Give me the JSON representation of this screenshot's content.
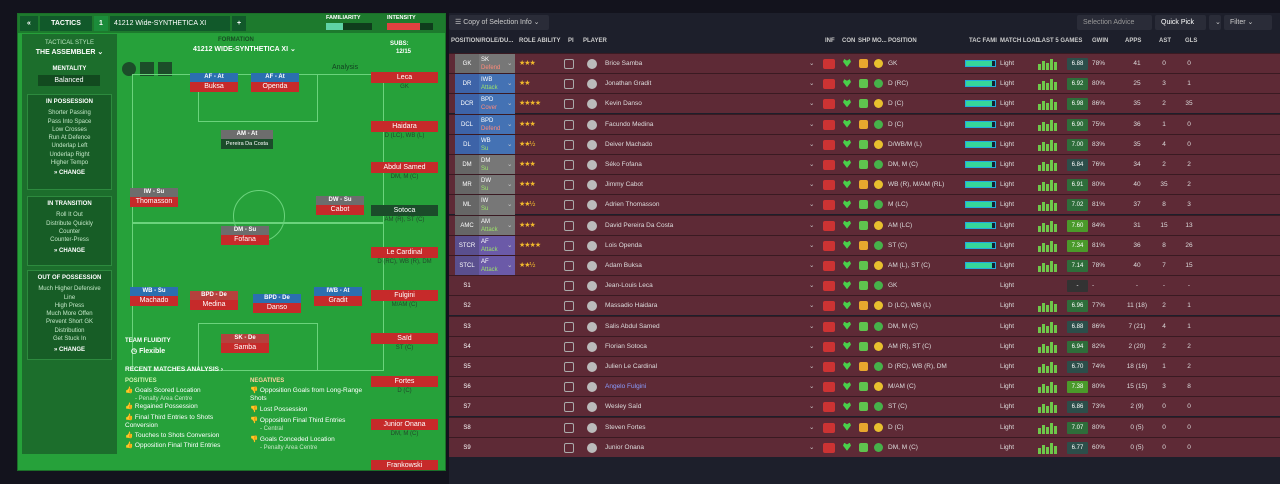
{
  "tactics": {
    "back_icon": "double-chevron-left",
    "menu_label": "TACTICS",
    "slot": "1",
    "name": "41212 Wide-SYNTHETICA XI",
    "add": "+",
    "familiarity_label": "FAMILIARITY",
    "intensity_label": "INTENSITY",
    "tactical_style_label": "TACTICAL STYLE",
    "tactical_style": "THE ASSEMBLER",
    "mentality_label": "MENTALITY",
    "mentality": "Balanced",
    "formation_label": "FORMATION",
    "formation": "41212 WIDE-SYNTHETICA XI",
    "subs_label": "SUBS:",
    "subs_value": "12/15",
    "analysis": "Analysis",
    "in_possession": {
      "title": "IN POSSESSION",
      "items": [
        "Shorter Passing",
        "Pass Into Space",
        "Low Crosses",
        "Run At Defence",
        "Underlap Left",
        "Underlap Right",
        "Higher Tempo"
      ],
      "change": "CHANGE"
    },
    "in_transition": {
      "title": "IN TRANSITION",
      "items": [
        "Roll It Out",
        "Distribute Quickly",
        "Counter",
        "Counter-Press"
      ],
      "change": "CHANGE"
    },
    "out_of_possession": {
      "title": "OUT OF POSSESSION",
      "items": [
        "Much Higher Defensive",
        "Line",
        "High Press",
        "Much More Offen",
        "Prevent Short GK",
        "Distribution",
        "Get Stuck In"
      ],
      "change": "CHANGE"
    },
    "team_fluidity_label": "TEAM FLUIDITY",
    "team_fluidity": "Flexible",
    "pitch_players": [
      {
        "role": "AF - At",
        "name": "Buksa"
      },
      {
        "role": "AF - At",
        "name": "Openda"
      },
      {
        "role": "AM - At",
        "name": "Pereira Da Costa"
      },
      {
        "role": "IW - Su",
        "name": "Thomasson"
      },
      {
        "role": "DW - Su",
        "name": "Cabot"
      },
      {
        "role": "DM - Su",
        "name": "Fofana"
      },
      {
        "role": "WB - Su",
        "name": "Machado"
      },
      {
        "role": "BPD - De",
        "name": "Medina"
      },
      {
        "role": "BPD - De",
        "name": "Danso"
      },
      {
        "role": "IWB - At",
        "name": "Gradit"
      },
      {
        "role": "SK - De",
        "name": "Samba"
      }
    ],
    "subs": [
      {
        "name": "Leca",
        "pos": "GK"
      },
      {
        "name": "Haidara",
        "pos": "D (LC), WB (L)"
      },
      {
        "name": "Abdul Samed",
        "pos": "DM, M (C)"
      },
      {
        "name": "Sotoca",
        "pos": "AM (R), ST (C)"
      },
      {
        "name": "Le Cardinal",
        "pos": "D (RC), WB (R), DM"
      },
      {
        "name": "Fulgini",
        "pos": "M/AM (C)"
      },
      {
        "name": "Saïd",
        "pos": "ST (C)"
      },
      {
        "name": "Fortes",
        "pos": "D (C)"
      },
      {
        "name": "Junior Onana",
        "pos": "DM, M (C)"
      },
      {
        "name": "Frankowski",
        "pos": ""
      }
    ],
    "recent_title": "RECENT MATCHES ANALYSIS",
    "positives_label": "POSITIVES",
    "negatives_label": "NEGATIVES",
    "positives": [
      {
        "text": "Goals Scored Location",
        "sub": "- Penalty Area Centre"
      },
      {
        "text": "Regained Possession",
        "sub": ""
      },
      {
        "text": "Final Third Entries to Shots Conversion",
        "sub": ""
      },
      {
        "text": "Touches to Shots Conversion",
        "sub": ""
      },
      {
        "text": "Opposition Final Third Entries",
        "sub": ""
      }
    ],
    "negatives": [
      {
        "text": "Opposition Goals from Long-Range Shots",
        "sub": ""
      },
      {
        "text": "Lost Possession",
        "sub": ""
      },
      {
        "text": "Opposition Final Third Entries",
        "sub": "- Central"
      },
      {
        "text": "Goals Conceded Location",
        "sub": "- Penalty Area Centre"
      }
    ]
  },
  "selection": {
    "view_select": "Copy of Selection Info",
    "advice_btn": "Selection Advice",
    "quick_pick": "Quick Pick",
    "filter": "Filter",
    "headers": [
      "POSITION/ROLE/DU...",
      "ROLE ABILITY",
      "PI",
      "PLAYER",
      "INF",
      "CON",
      "SHP",
      "MO...",
      "POSITION",
      "TAC FAMI",
      "MATCH LOAD",
      "LAST 5 GAMES",
      "GWIN",
      "APPS",
      "AST",
      "GLS"
    ],
    "rows": [
      {
        "slot": "GK",
        "role": "SK",
        "duty": "Defend",
        "stars": "★★★",
        "player": "Brice Samba",
        "position": "GK",
        "load": "Light",
        "rating": "6.88",
        "gwin": "78%",
        "apps": "41",
        "ast": "0",
        "gls": "0"
      },
      {
        "slot": "DR",
        "role": "IWB",
        "duty": "Attack",
        "stars": "★★",
        "player": "Jonathan Gradit",
        "position": "D (RC)",
        "load": "Light",
        "rating": "6.92",
        "gwin": "80%",
        "apps": "25",
        "ast": "3",
        "gls": "1"
      },
      {
        "slot": "DCR",
        "role": "BPD",
        "duty": "Cover",
        "stars": "★★★★",
        "player": "Kevin Danso",
        "position": "D (C)",
        "load": "Light",
        "rating": "6.98",
        "gwin": "86%",
        "apps": "35",
        "ast": "2",
        "gls": "35"
      },
      {
        "slot": "DCL",
        "role": "BPD",
        "duty": "Defend",
        "stars": "★★★",
        "player": "Facundo Medina",
        "position": "D (C)",
        "load": "Light",
        "rating": "6.90",
        "gwin": "75%",
        "apps": "36",
        "ast": "1",
        "gls": "0"
      },
      {
        "slot": "DL",
        "role": "WB",
        "duty": "Su",
        "stars": "★★½",
        "player": "Deiver Machado",
        "position": "D/WB/M (L)",
        "load": "Light",
        "rating": "7.00",
        "gwin": "83%",
        "apps": "35",
        "ast": "4",
        "gls": "0"
      },
      {
        "slot": "DM",
        "role": "DM",
        "duty": "Su",
        "stars": "★★★",
        "player": "Séko Fofana",
        "position": "DM, M (C)",
        "load": "Light",
        "rating": "6.84",
        "gwin": "76%",
        "apps": "34",
        "ast": "2",
        "gls": "2"
      },
      {
        "slot": "MR",
        "role": "DW",
        "duty": "Su",
        "stars": "★★★",
        "player": "Jimmy Cabot",
        "position": "WB (R), M/AM (RL)",
        "load": "Light",
        "rating": "6.91",
        "gwin": "80%",
        "apps": "40",
        "ast": "35",
        "gls": "2"
      },
      {
        "slot": "ML",
        "role": "IW",
        "duty": "Su",
        "stars": "★★½",
        "player": "Adrien Thomasson",
        "position": "M (LC)",
        "load": "Light",
        "rating": "7.02",
        "gwin": "81%",
        "apps": "37",
        "ast": "8",
        "gls": "3"
      },
      {
        "slot": "AMC",
        "role": "AM",
        "duty": "Attack",
        "stars": "★★★",
        "player": "David Pereira Da Costa",
        "position": "AM (LC)",
        "load": "Light",
        "rating": "7.60",
        "gwin": "84%",
        "apps": "31",
        "ast": "15",
        "gls": "13"
      },
      {
        "slot": "STCR",
        "role": "AF",
        "duty": "Attack",
        "stars": "★★★★",
        "player": "Lois Openda",
        "position": "ST (C)",
        "load": "Light",
        "rating": "7.34",
        "gwin": "81%",
        "apps": "36",
        "ast": "8",
        "gls": "26"
      },
      {
        "slot": "STCL",
        "role": "AF",
        "duty": "Attack",
        "stars": "★★½",
        "player": "Adam Buksa",
        "position": "AM (L), ST (C)",
        "load": "Light",
        "rating": "7.14",
        "gwin": "78%",
        "apps": "40",
        "ast": "7",
        "gls": "15"
      },
      {
        "slot": "S1",
        "role": "",
        "duty": "",
        "stars": "",
        "player": "Jean-Louis Leca",
        "position": "GK",
        "load": "Light",
        "rating": "-",
        "gwin": "-",
        "apps": "-",
        "ast": "-",
        "gls": "-"
      },
      {
        "slot": "S2",
        "role": "",
        "duty": "",
        "stars": "",
        "player": "Massadio Haidara",
        "position": "D (LC), WB (L)",
        "load": "Light",
        "rating": "6.96",
        "gwin": "77%",
        "apps": "11 (18)",
        "ast": "2",
        "gls": "1"
      },
      {
        "slot": "S3",
        "role": "",
        "duty": "",
        "stars": "",
        "player": "Salis Abdul Samed",
        "position": "DM, M (C)",
        "load": "Light",
        "rating": "6.88",
        "gwin": "86%",
        "apps": "7 (21)",
        "ast": "4",
        "gls": "1"
      },
      {
        "slot": "S4",
        "role": "",
        "duty": "",
        "stars": "",
        "player": "Florian Sotoca",
        "position": "AM (R), ST (C)",
        "load": "Light",
        "rating": "6.94",
        "gwin": "82%",
        "apps": "2 (20)",
        "ast": "2",
        "gls": "2"
      },
      {
        "slot": "S5",
        "role": "",
        "duty": "",
        "stars": "",
        "player": "Julien Le Cardinal",
        "position": "D (RC), WB (R), DM",
        "load": "Light",
        "rating": "6.70",
        "gwin": "74%",
        "apps": "18 (16)",
        "ast": "1",
        "gls": "2"
      },
      {
        "slot": "S6",
        "role": "",
        "duty": "",
        "stars": "",
        "player": "Angelo Fulgini",
        "position": "M/AM (C)",
        "load": "Light",
        "rating": "7.38",
        "gwin": "80%",
        "apps": "15 (15)",
        "ast": "3",
        "gls": "8"
      },
      {
        "slot": "S7",
        "role": "",
        "duty": "",
        "stars": "",
        "player": "Wesley Saïd",
        "position": "ST (C)",
        "load": "Light",
        "rating": "6.86",
        "gwin": "73%",
        "apps": "2 (9)",
        "ast": "0",
        "gls": "0"
      },
      {
        "slot": "S8",
        "role": "",
        "duty": "",
        "stars": "",
        "player": "Steven Fortes",
        "position": "D (C)",
        "load": "Light",
        "rating": "7.07",
        "gwin": "80%",
        "apps": "0 (5)",
        "ast": "0",
        "gls": "0"
      },
      {
        "slot": "S9",
        "role": "",
        "duty": "",
        "stars": "",
        "player": "Junior Onana",
        "position": "DM, M (C)",
        "load": "Light",
        "rating": "6.77",
        "gwin": "60%",
        "apps": "0 (5)",
        "ast": "0",
        "gls": "0"
      }
    ]
  },
  "colors": {
    "pitch": "#26a13a",
    "row": "#5e2a36",
    "accent": "#36d69a"
  }
}
